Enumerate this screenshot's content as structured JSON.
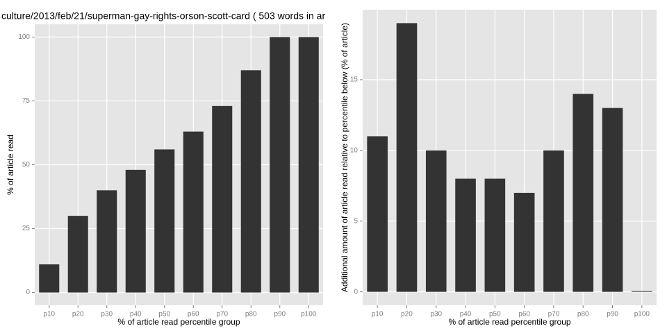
{
  "chart_data": [
    {
      "type": "bar",
      "title": "culture/2013/feb/21/superman-gay-rights-orson-scott-card ( 503 words in ar",
      "x_label": "% of article read percentile group",
      "y_label": "% of article read",
      "categories": [
        "p10",
        "p20",
        "p30",
        "p40",
        "p50",
        "p60",
        "p70",
        "p80",
        "p90",
        "p100"
      ],
      "values": [
        11,
        30,
        40,
        48,
        56,
        63,
        73,
        87,
        100,
        100
      ],
      "color": "#333333",
      "ylim": [
        -5,
        105
      ],
      "yticks": [
        0,
        25,
        50,
        75,
        100
      ],
      "grid": true
    },
    {
      "type": "bar",
      "x_label": "% of article read percentile group",
      "y_label": "Additional amount of article read relative to percentile below (% of article)",
      "categories": [
        "p10",
        "p20",
        "p30",
        "p40",
        "p50",
        "p60",
        "p70",
        "p80",
        "p90",
        "p100"
      ],
      "values": [
        11,
        19,
        10,
        8,
        8,
        7,
        10,
        14,
        13,
        0
      ],
      "color": "#333333",
      "ylim": [
        -0.95,
        19.95
      ],
      "yticks": [
        0,
        5,
        10,
        15
      ],
      "grid": true
    }
  ]
}
